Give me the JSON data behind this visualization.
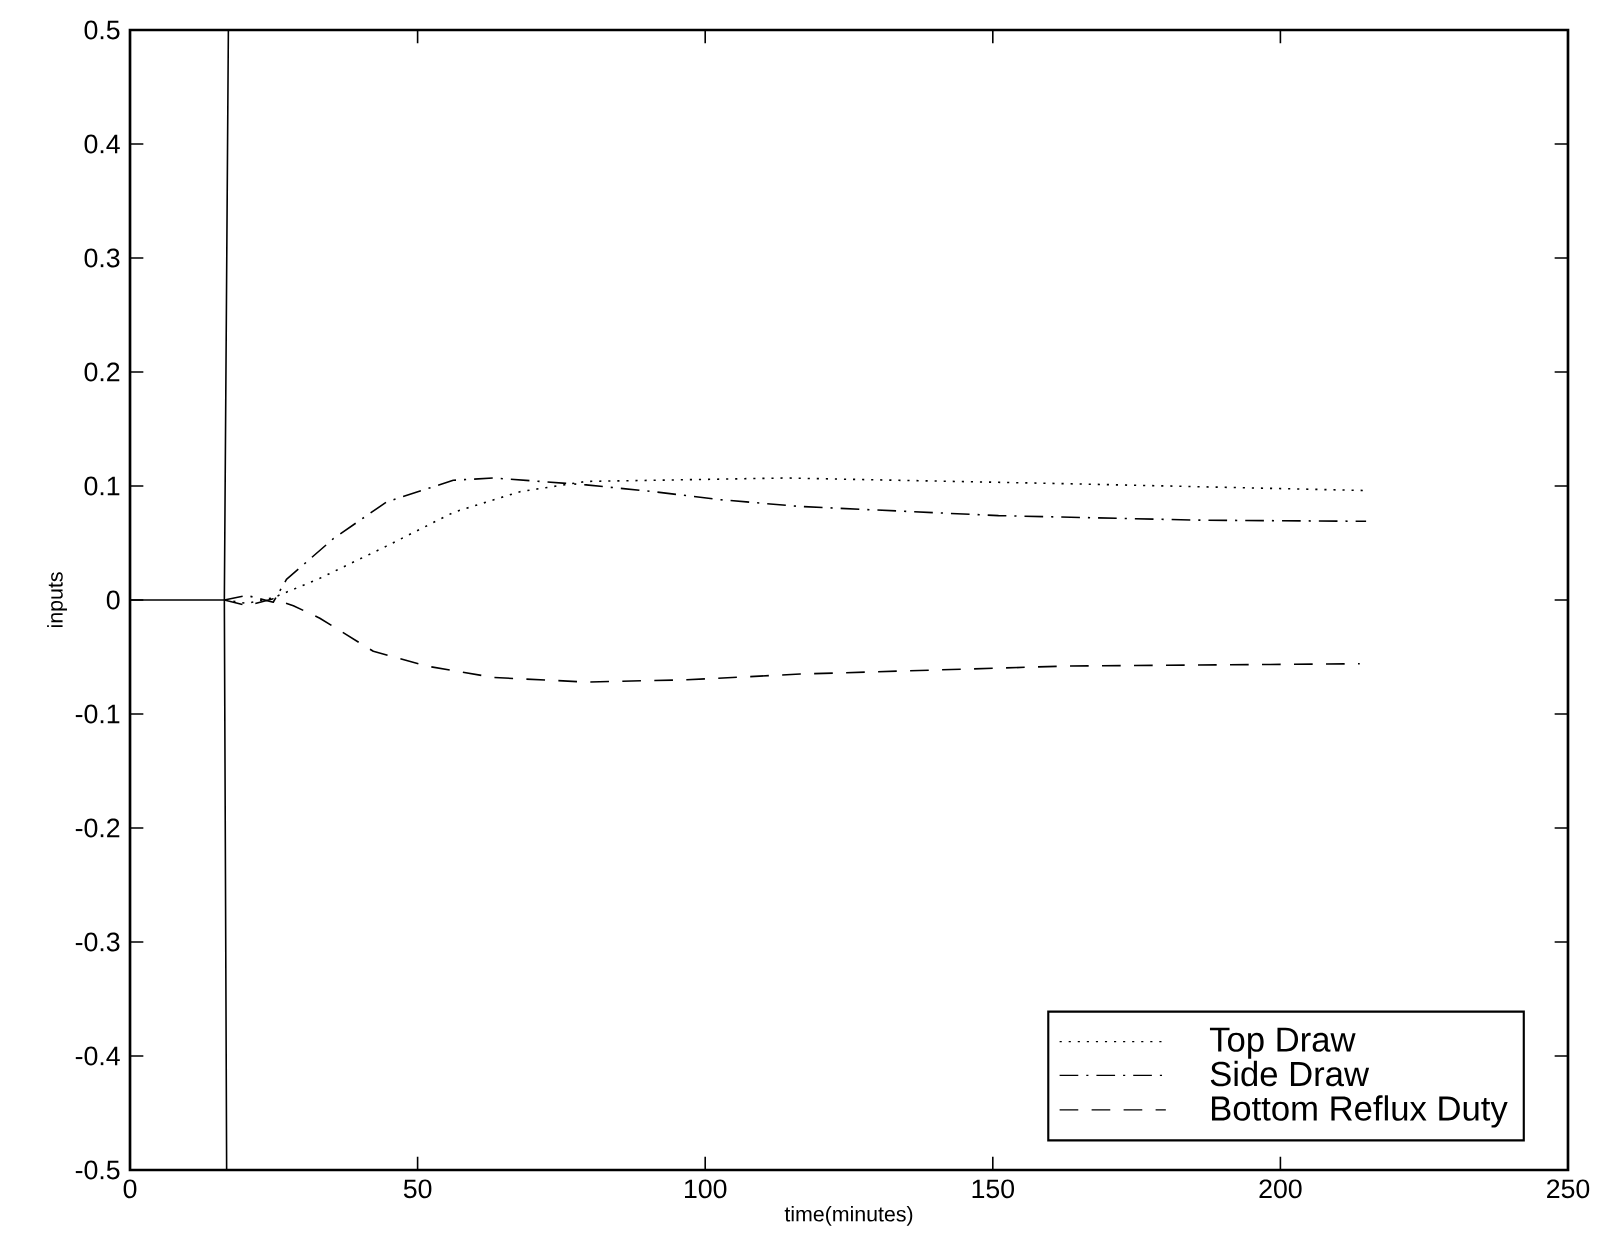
{
  "chart_data": {
    "type": "line",
    "xlabel": "time(minutes)",
    "ylabel": "inputs",
    "xlim": [
      0,
      250
    ],
    "ylim": [
      -0.5,
      0.5
    ],
    "xticks": [
      0,
      50,
      100,
      150,
      200,
      250
    ],
    "yticks": [
      -0.5,
      -0.4,
      -0.3,
      -0.2,
      -0.1,
      0,
      0.1,
      0.2,
      0.3,
      0.4,
      0.5
    ],
    "grid": false,
    "legend": "bottom right",
    "series": [
      {
        "color": "#000000",
        "line_style": "solid",
        "x": [
          0,
          16.4
        ],
        "values": [
          0,
          0
        ]
      },
      {
        "color": "#000000",
        "line_style": "solid",
        "x": [
          17.1,
          16.4,
          16.8
        ],
        "values": [
          0.5,
          0,
          -0.5
        ]
      },
      {
        "name": "Top Draw",
        "color": "#000000",
        "line_style": "dotted",
        "x": [
          16.4,
          20.3,
          24.9,
          33,
          44.5,
          56.3,
          67.8,
          79.3,
          91.1,
          114,
          162.7,
          214.9
        ],
        "values": [
          0,
          -0.003,
          0.002,
          0.019,
          0.047,
          0.077,
          0.095,
          0.104,
          0.105,
          0.107,
          0.102,
          0.096
        ]
      },
      {
        "name": "Side Draw",
        "color": "#000000",
        "line_style": "dashdot",
        "x": [
          16.4,
          20.3,
          24.9,
          27.2,
          35.4,
          44.6,
          56.2,
          63.2,
          79.3,
          91,
          102.6,
          116.5,
          151,
          186,
          214.9
        ],
        "values": [
          0,
          0.004,
          -0.002,
          0.018,
          0.054,
          0.086,
          0.105,
          0.107,
          0.101,
          0.095,
          0.088,
          0.082,
          0.074,
          0.07,
          0.069
        ]
      },
      {
        "name": "Bottom Reflux Duty",
        "color": "#000000",
        "line_style": "dashed",
        "x": [
          16.4,
          20.3,
          24.9,
          28.4,
          33,
          42.3,
          51.6,
          63.2,
          79.4,
          96.8,
          116.5,
          162.7,
          213.8
        ],
        "values": [
          0,
          -0.005,
          0.001,
          -0.005,
          -0.016,
          -0.045,
          -0.058,
          -0.068,
          -0.072,
          -0.07,
          -0.065,
          -0.058,
          -0.056
        ]
      }
    ]
  }
}
